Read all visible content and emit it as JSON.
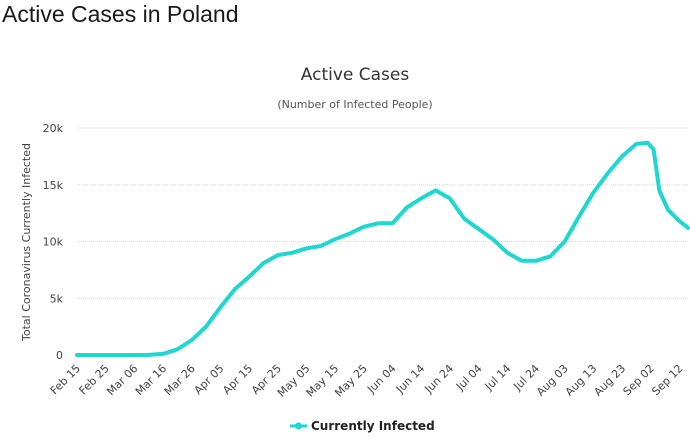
{
  "page": {
    "heading": "Active Cases in Poland"
  },
  "chart_data": {
    "type": "line",
    "title": "Active Cases",
    "subtitle": "(Number of Infected People)",
    "ylabel": "Total Coronavirus Currently Infected",
    "xlabel": "",
    "ylim": [
      0,
      20000
    ],
    "grid": true,
    "legend_position": "bottom-center",
    "y_ticks": [
      "0",
      "5k",
      "10k",
      "15k",
      "20k"
    ],
    "x_ticks": [
      "Feb 15",
      "Feb 25",
      "Mar 06",
      "Mar 16",
      "Mar 26",
      "Apr 05",
      "Apr 15",
      "Apr 25",
      "May 05",
      "May 15",
      "May 25",
      "Jun 04",
      "Jun 14",
      "Jun 24",
      "Jul 04",
      "Jul 14",
      "Jul 24",
      "Aug 03",
      "Aug 13",
      "Aug 23",
      "Sep 02",
      "Sep 12"
    ],
    "x": [
      "Feb 15",
      "Feb 20",
      "Feb 25",
      "Mar 01",
      "Mar 06",
      "Mar 11",
      "Mar 16",
      "Mar 21",
      "Mar 26",
      "Mar 31",
      "Apr 05",
      "Apr 10",
      "Apr 15",
      "Apr 20",
      "Apr 25",
      "Apr 30",
      "May 05",
      "May 10",
      "May 15",
      "May 20",
      "May 25",
      "May 30",
      "Jun 04",
      "Jun 09",
      "Jun 14",
      "Jun 19",
      "Jun 24",
      "Jun 29",
      "Jul 04",
      "Jul 09",
      "Jul 14",
      "Jul 19",
      "Jul 24",
      "Jul 29",
      "Aug 03",
      "Aug 08",
      "Aug 13",
      "Aug 18",
      "Aug 23",
      "Aug 28",
      "Sep 01",
      "Sep 03",
      "Sep 05",
      "Sep 08",
      "Sep 12",
      "Sep 15"
    ],
    "series": [
      {
        "name": "Currently Infected",
        "color": "#1fd6d0",
        "values": [
          0,
          0,
          0,
          0,
          0,
          5,
          100,
          500,
          1300,
          2500,
          4200,
          5800,
          6900,
          8100,
          8800,
          9000,
          9400,
          9600,
          10200,
          10700,
          11300,
          11600,
          11600,
          13000,
          13800,
          14500,
          13800,
          12000,
          11100,
          10200,
          9000,
          8300,
          8300,
          8700,
          10000,
          12200,
          14300,
          16000,
          17500,
          18600,
          18700,
          18100,
          14500,
          12800,
          11800,
          11200
        ]
      }
    ]
  }
}
